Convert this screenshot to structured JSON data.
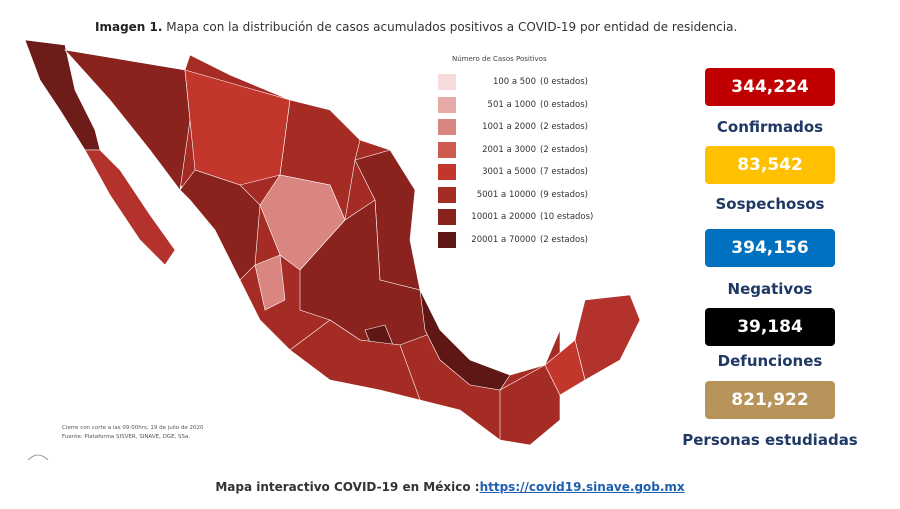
{
  "title": {
    "label": "Imagen 1.",
    "text": "Mapa con la distribución de casos acumulados positivos a COVID-19 por entidad de residencia."
  },
  "legend": {
    "title": "Número de Casos Positivos",
    "items": [
      {
        "range": "100  a  500",
        "count": "(0 estados)",
        "color": "#f6dcda"
      },
      {
        "range": "501  a  1000",
        "count": "(0 estados)",
        "color": "#e8aaa6"
      },
      {
        "range": "1001  a  2000",
        "count": "(2 estados)",
        "color": "#d98580"
      },
      {
        "range": "2001  a  3000",
        "count": "(2 estados)",
        "color": "#cf5a50"
      },
      {
        "range": "3001  a  5000",
        "count": "(7 estados)",
        "color": "#c3362c"
      },
      {
        "range": "5001  a  10000",
        "count": "(9 estados)",
        "color": "#a52b25"
      },
      {
        "range": "10001  a  20000",
        "count": "(10 estados)",
        "color": "#8a221e"
      },
      {
        "range": "20001  a  70000",
        "count": "(2 estados)",
        "color": "#5e1714"
      }
    ]
  },
  "stats": [
    {
      "value": "344,224",
      "label": "Confirmados",
      "color": "#c00000",
      "text_color": "#ffffff"
    },
    {
      "value": "83,542",
      "label": "Sospechosos",
      "color": "#ffc000",
      "text_color": "#ffffff"
    },
    {
      "value": "394,156",
      "label": "Negativos",
      "color": "#0070c0",
      "text_color": "#ffffff"
    },
    {
      "value": "39,184",
      "label": "Defunciones",
      "color": "#000000",
      "text_color": "#ffffff"
    },
    {
      "value": "821,922",
      "label": "Personas estudiadas",
      "color": "#b8945a",
      "text_color": "#ffffff"
    }
  ],
  "notes": [
    "Cierre con corte a las 09:00hrs, 19 de julio de 2020",
    "Fuente: Plataforma SISVER, SINAVE, DGE, SSa."
  ],
  "footer": {
    "text": "Mapa interactivo COVID-19 en México :",
    "link": "https://covid19.sinave.gob.mx"
  }
}
